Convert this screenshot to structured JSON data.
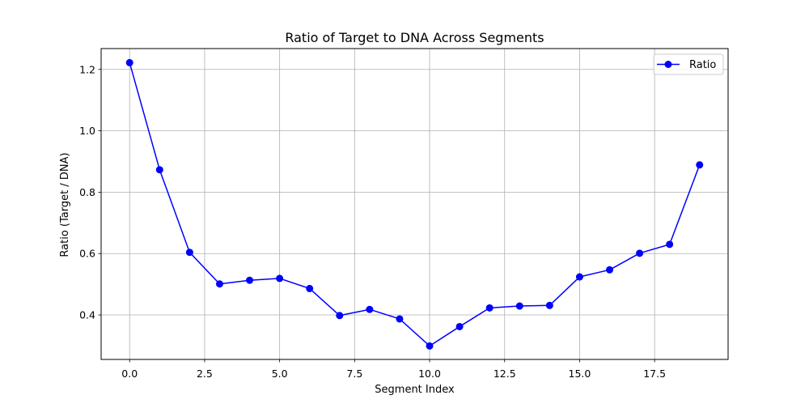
{
  "chart_data": {
    "type": "line",
    "title": "Ratio of Target to DNA Across Segments",
    "xlabel": "Segment Index",
    "ylabel": "Ratio (Target / DNA)",
    "xlim": [
      -0.95,
      19.95
    ],
    "ylim": [
      0.255,
      1.268
    ],
    "x_ticks": [
      0.0,
      2.5,
      5.0,
      7.5,
      10.0,
      12.5,
      15.0,
      17.5
    ],
    "x_tick_labels": [
      "0.0",
      "2.5",
      "5.0",
      "7.5",
      "10.0",
      "12.5",
      "15.0",
      "17.5"
    ],
    "y_ticks": [
      0.4,
      0.6,
      0.8,
      1.0,
      1.2
    ],
    "y_tick_labels": [
      "0.4",
      "0.6",
      "0.8",
      "1.0",
      "1.2"
    ],
    "grid": true,
    "legend_position": "top-right",
    "series": [
      {
        "name": "Ratio",
        "color": "#0000ff",
        "marker": "circle",
        "x": [
          0,
          1,
          2,
          3,
          4,
          5,
          6,
          7,
          8,
          9,
          10,
          11,
          12,
          13,
          14,
          15,
          16,
          17,
          18,
          19
        ],
        "values": [
          1.222,
          0.873,
          0.604,
          0.501,
          0.513,
          0.519,
          0.486,
          0.398,
          0.418,
          0.387,
          0.299,
          0.362,
          0.423,
          0.429,
          0.431,
          0.524,
          0.547,
          0.601,
          0.63,
          0.889
        ]
      }
    ]
  }
}
